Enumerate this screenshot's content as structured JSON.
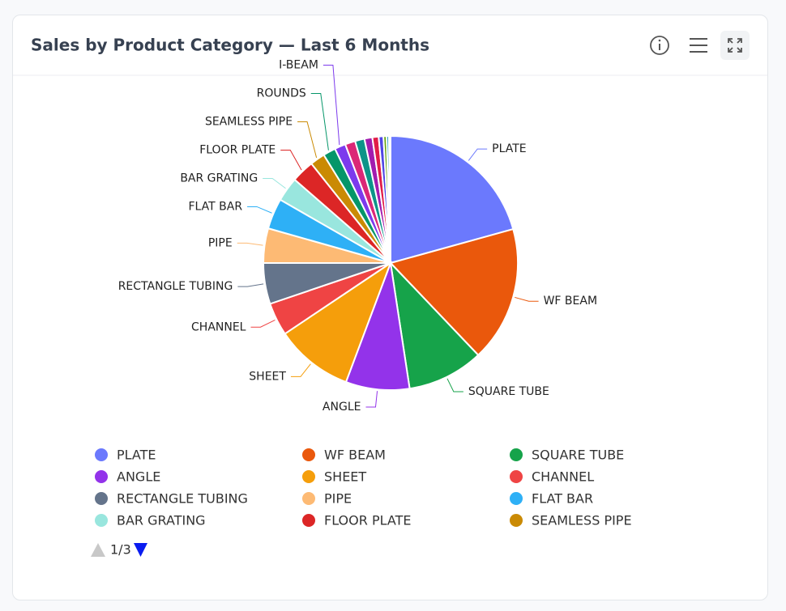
{
  "chart_data": {
    "type": "pie",
    "title": "Sales by Product Category — Last 6 Months",
    "categories": [
      "PLATE",
      "WF BEAM",
      "SQUARE TUBE",
      "ANGLE",
      "SHEET",
      "CHANNEL",
      "RECTANGLE TUBING",
      "PIPE",
      "FLAT BAR",
      "BAR GRATING",
      "FLOOR PLATE",
      "SEAMLESS PIPE",
      "ROUNDS",
      "I-BEAM",
      null,
      null,
      null,
      null,
      null,
      null,
      null,
      null
    ],
    "values": [
      20.7,
      17.2,
      9.7,
      8.1,
      9.9,
      4.2,
      5.2,
      4.4,
      3.9,
      3.1,
      2.9,
      1.9,
      1.6,
      1.4,
      1.3,
      1.2,
      1.0,
      0.8,
      0.6,
      0.4,
      0.3,
      0.2
    ],
    "colors": [
      "#6b79fd",
      "#ea580c",
      "#16a34a",
      "#9333ea",
      "#f59e0b",
      "#ef4444",
      "#64748b",
      "#fdba74",
      "#2eb0f6",
      "#99e6de",
      "#dc2626",
      "#ca8a04",
      "#059669",
      "#7c3aed",
      "#db2777",
      "#0d9488",
      "#a21caf",
      "#e11d48",
      "#4f46e5",
      "#65a30d",
      "#0891b2",
      "#84cc16"
    ],
    "legend_page": "1/3"
  }
}
